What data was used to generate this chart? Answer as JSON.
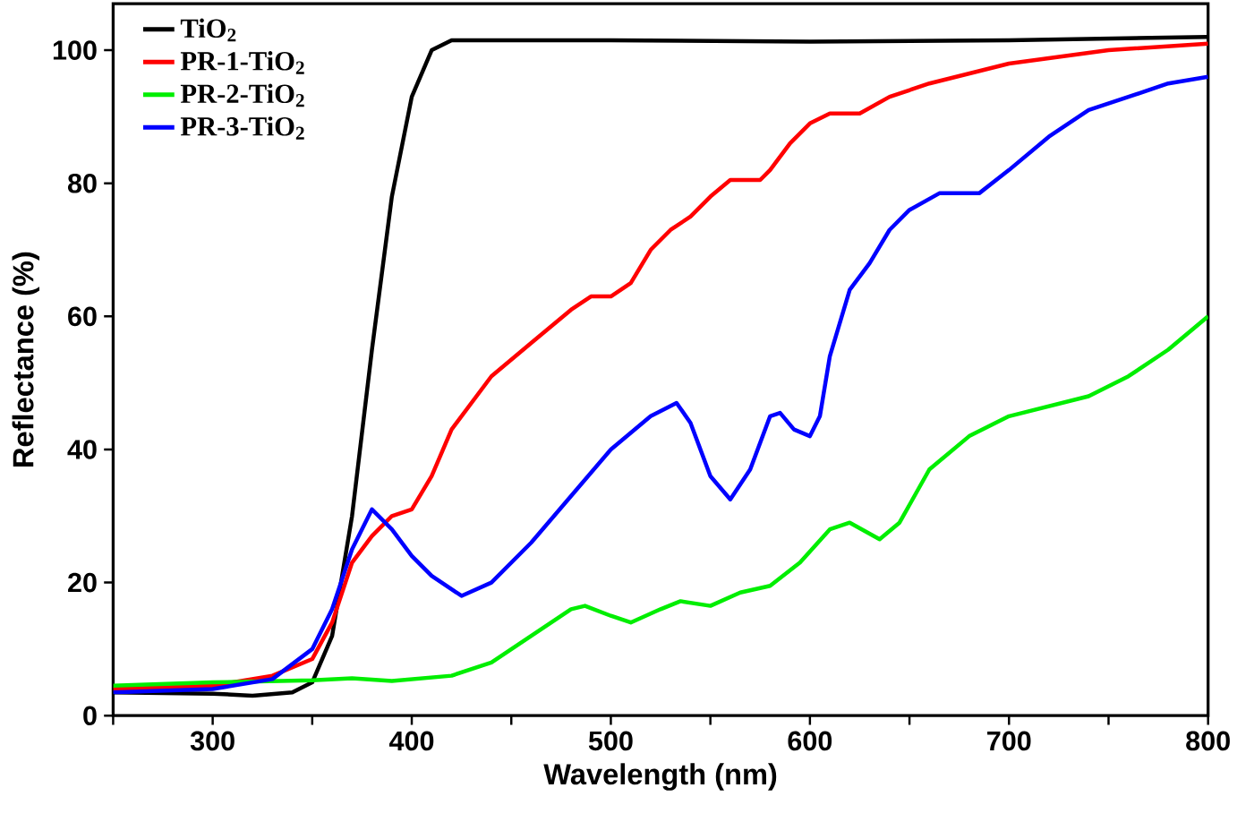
{
  "chart_data": {
    "type": "line",
    "xlabel": "Wavelength (nm)",
    "ylabel": "Reflectance (%)",
    "xlim": [
      250,
      800
    ],
    "ylim": [
      0,
      107
    ],
    "xticks": [
      {
        "value": 250,
        "label": null
      },
      300,
      {
        "value": 350,
        "label": null
      },
      400,
      {
        "value": 450,
        "label": null
      },
      500,
      {
        "value": 550,
        "label": null
      },
      600,
      {
        "value": 650,
        "label": null
      },
      700,
      {
        "value": 750,
        "label": null
      },
      800
    ],
    "yticks": [
      0,
      20,
      40,
      60,
      80,
      100
    ],
    "grid": false,
    "legend": "top left",
    "marker": "none",
    "line_style": "solid",
    "series": [
      {
        "name": "TiO$_{2}$",
        "color": "#000000",
        "x": [
          250,
          300,
          320,
          340,
          350,
          360,
          370,
          380,
          390,
          400,
          410,
          420,
          500,
          600,
          700,
          800
        ],
        "values": [
          3.5,
          3.3,
          3,
          3.5,
          5,
          12,
          30,
          55,
          78,
          93,
          100,
          101.5,
          101.5,
          101.3,
          101.5,
          102
        ]
      },
      {
        "name": "PR-1-TiO$_{2}$",
        "color": "#ff0000",
        "x": [
          250,
          300,
          330,
          350,
          360,
          370,
          380,
          390,
          400,
          410,
          420,
          440,
          460,
          480,
          490,
          500,
          510,
          520,
          530,
          540,
          550,
          560,
          575,
          580,
          590,
          600,
          610,
          625,
          640,
          660,
          700,
          750,
          800
        ],
        "values": [
          4,
          4.5,
          6,
          8.5,
          14,
          23,
          27,
          30,
          31,
          36,
          43,
          51,
          56,
          61,
          63,
          63,
          65,
          70,
          73,
          75,
          78,
          80.5,
          80.5,
          82,
          86,
          89,
          90.5,
          90.5,
          93,
          95,
          98,
          100,
          101
        ]
      },
      {
        "name": "PR-2-TiO$_{2}$",
        "color": "#00ee00",
        "x": [
          250,
          300,
          350,
          370,
          390,
          420,
          440,
          460,
          480,
          487,
          500,
          510,
          525,
          535,
          550,
          565,
          580,
          595,
          610,
          620,
          635,
          645,
          660,
          680,
          700,
          740,
          760,
          780,
          800
        ],
        "values": [
          4.5,
          5,
          5.3,
          5.6,
          5.2,
          6,
          8,
          12,
          16,
          16.5,
          15,
          14,
          16,
          17.2,
          16.5,
          18.5,
          19.5,
          23,
          28,
          29,
          26.5,
          29,
          37,
          42,
          45,
          48,
          51,
          55,
          60
        ]
      },
      {
        "name": "PR-3-TiO$_{2}$",
        "color": "#0000ff",
        "x": [
          250,
          300,
          330,
          350,
          360,
          370,
          380,
          390,
          400,
          410,
          425,
          440,
          460,
          480,
          500,
          520,
          533,
          540,
          550,
          560,
          570,
          580,
          585,
          592,
          600,
          605,
          610,
          620,
          630,
          640,
          650,
          665,
          685,
          700,
          720,
          740,
          760,
          780,
          800
        ],
        "values": [
          3.5,
          4,
          5.5,
          10,
          16,
          25,
          31,
          28,
          24,
          21,
          18,
          20,
          26,
          33,
          40,
          45,
          47,
          44,
          36,
          32.5,
          37,
          45,
          45.5,
          43,
          42,
          45,
          54,
          64,
          68,
          73,
          76,
          78.5,
          78.5,
          82,
          87,
          91,
          93,
          95,
          96
        ]
      }
    ]
  }
}
